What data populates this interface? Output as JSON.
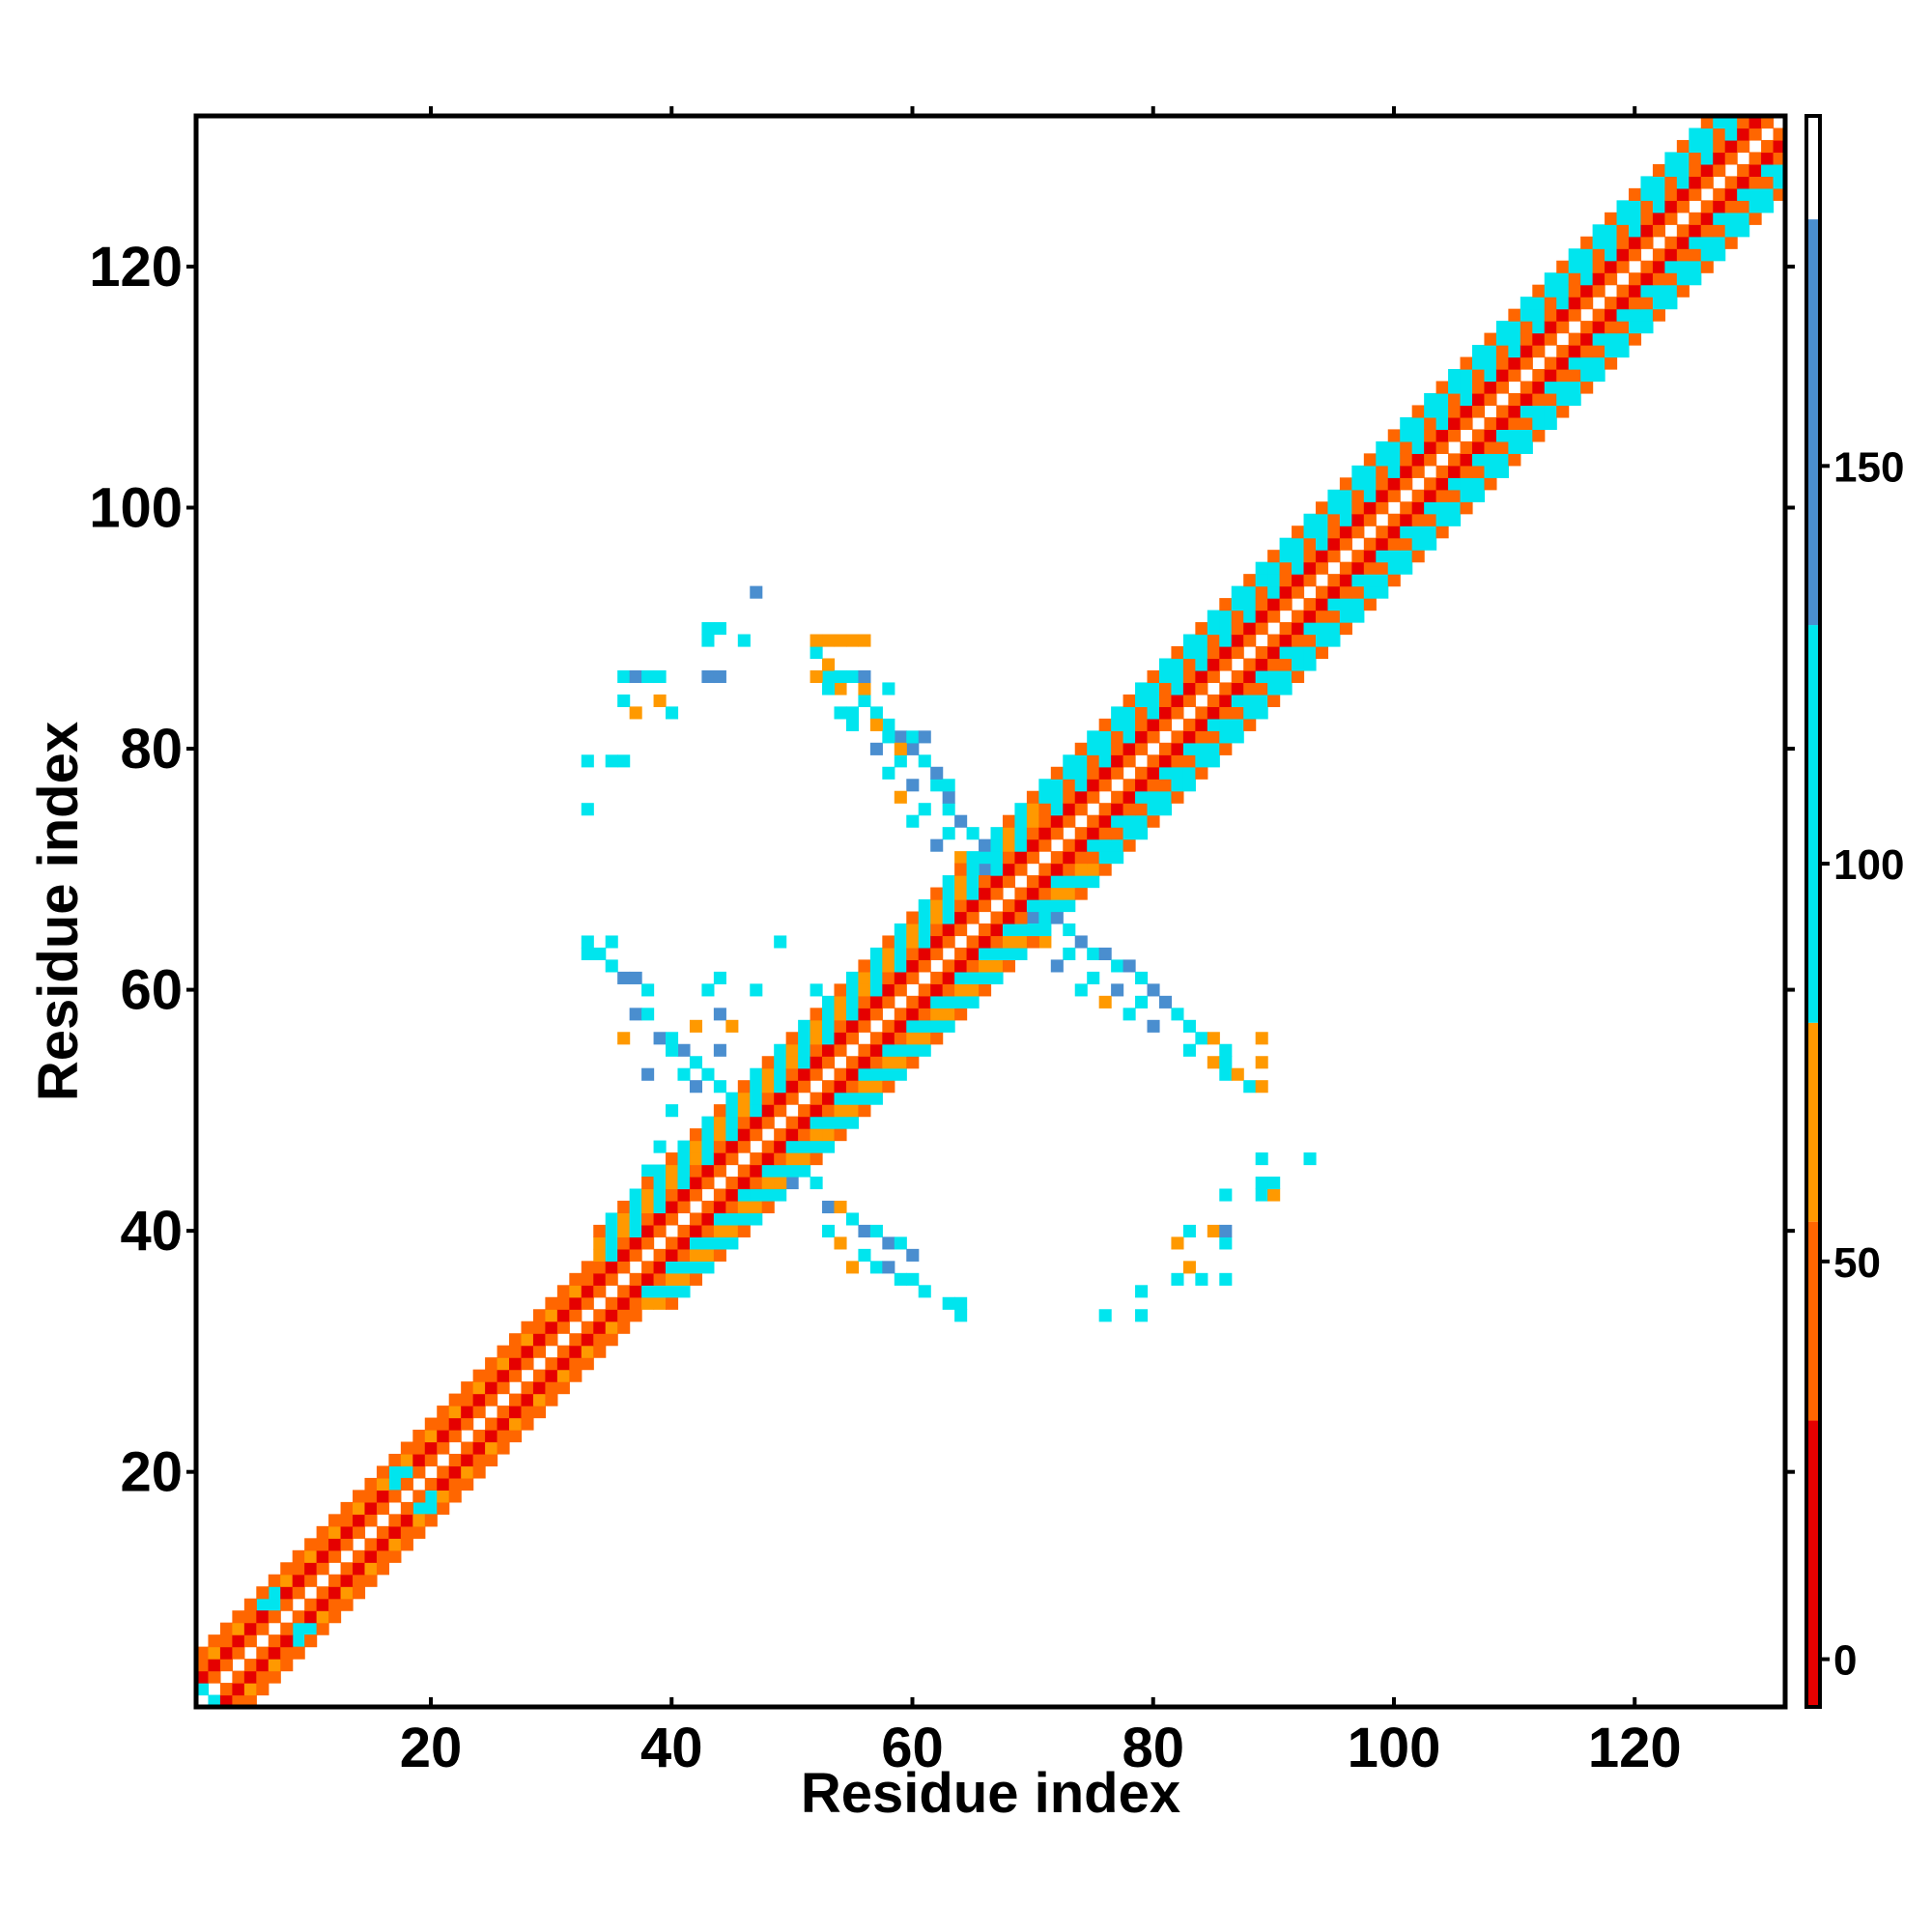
{
  "chart_data": {
    "type": "heatmap",
    "title": "",
    "xlabel": "Residue index",
    "ylabel": "Residue index",
    "xlim": [
      0.5,
      132.5
    ],
    "ylim": [
      0.5,
      132.5
    ],
    "xticks": [
      20,
      40,
      60,
      80,
      100,
      120
    ],
    "yticks": [
      20,
      40,
      60,
      80,
      100,
      120
    ],
    "grid": false,
    "colorbar": {
      "range": [
        -6,
        194
      ],
      "ticks": [
        0,
        50,
        100,
        150
      ],
      "segments": [
        {
          "from": -6,
          "to": 30,
          "color": "#e50000"
        },
        {
          "from": 30,
          "to": 55,
          "color": "#ff6600"
        },
        {
          "from": 55,
          "to": 80,
          "color": "#ff9900"
        },
        {
          "from": 80,
          "to": 130,
          "color": "#00e5ee"
        },
        {
          "from": 130,
          "to": 181,
          "color": "#4a8ecf"
        },
        {
          "from": 181,
          "to": 194,
          "color": "#ffffff"
        }
      ]
    },
    "palette": {
      "r": "#e50000",
      "o": "#ff6600",
      "y": "#ff9900",
      "c": "#00e5ee",
      "b": "#4a8ecf"
    },
    "diagonal_band": {
      "description_levels": "distance from diagonal mapped to class",
      "offsets": [
        {
          "min_res": 1,
          "max_res": 33,
          "pattern": [
            "o",
            "r",
            "y",
            "o"
          ]
        },
        {
          "min_res": 34,
          "max_res": 70,
          "pattern": [
            "o",
            "r",
            "o",
            "c",
            "y",
            "c"
          ]
        },
        {
          "min_res": 71,
          "max_res": 132,
          "pattern": [
            "o",
            "r",
            "c",
            "o",
            "c",
            "c"
          ]
        }
      ]
    },
    "cells": [
      [
        17,
        20,
        "c"
      ],
      [
        18,
        20,
        "c"
      ],
      [
        17,
        19,
        "c"
      ],
      [
        20,
        17,
        "c"
      ],
      [
        20,
        18,
        "c"
      ],
      [
        19,
        17,
        "c"
      ],
      [
        6,
        9,
        "c"
      ],
      [
        7,
        9,
        "c"
      ],
      [
        7,
        10,
        "c"
      ],
      [
        9,
        6,
        "c"
      ],
      [
        10,
        7,
        "c"
      ],
      [
        9,
        7,
        "c"
      ],
      [
        1,
        2,
        "c"
      ],
      [
        2,
        1,
        "c"
      ],
      [
        43,
        60,
        "c"
      ],
      [
        44,
        61,
        "c"
      ],
      [
        47,
        60,
        "c"
      ],
      [
        49,
        64,
        "c"
      ],
      [
        52,
        60,
        "c"
      ],
      [
        38,
        45,
        "c"
      ],
      [
        39,
        47,
        "c"
      ],
      [
        40,
        50,
        "c"
      ],
      [
        41,
        53,
        "c"
      ],
      [
        44,
        55,
        "b"
      ],
      [
        45,
        57,
        "y"
      ],
      [
        42,
        52,
        "b"
      ],
      [
        43,
        53,
        "c"
      ],
      [
        37,
        58,
        "b"
      ],
      [
        38,
        58,
        "c"
      ],
      [
        36,
        61,
        "b"
      ],
      [
        35,
        62,
        "c"
      ],
      [
        34,
        63,
        "c"
      ],
      [
        35,
        64,
        "c"
      ],
      [
        33,
        64,
        "c"
      ],
      [
        33,
        63,
        "c"
      ],
      [
        37,
        61,
        "b"
      ],
      [
        38,
        60,
        "c"
      ],
      [
        39,
        56,
        "b"
      ],
      [
        40,
        56,
        "c"
      ],
      [
        41,
        55,
        "b"
      ],
      [
        42,
        54,
        "c"
      ],
      [
        43,
        53,
        "b"
      ],
      [
        44,
        52,
        "c"
      ],
      [
        45,
        51,
        "c"
      ],
      [
        36,
        56,
        "y"
      ],
      [
        38,
        53,
        "b"
      ],
      [
        40,
        55,
        "c"
      ],
      [
        42,
        57,
        "y"
      ],
      [
        44,
        58,
        "b"
      ],
      [
        50,
        44,
        "b"
      ],
      [
        52,
        44,
        "c"
      ],
      [
        53,
        42,
        "b"
      ],
      [
        54,
        42,
        "y"
      ],
      [
        55,
        41,
        "c"
      ],
      [
        56,
        40,
        "b"
      ],
      [
        57,
        40,
        "c"
      ],
      [
        58,
        39,
        "b"
      ],
      [
        59,
        39,
        "c"
      ],
      [
        60,
        38,
        "b"
      ],
      [
        55,
        37,
        "y"
      ],
      [
        57,
        37,
        "c"
      ],
      [
        59,
        36,
        "c"
      ],
      [
        61,
        35,
        "c"
      ],
      [
        63,
        34,
        "c"
      ],
      [
        64,
        33,
        "c"
      ],
      [
        64,
        34,
        "c"
      ],
      [
        53,
        40,
        "c"
      ],
      [
        54,
        39,
        "y"
      ],
      [
        56,
        38,
        "c"
      ],
      [
        58,
        37,
        "b"
      ],
      [
        60,
        36,
        "c"
      ],
      [
        76,
        33,
        "c"
      ],
      [
        79,
        33,
        "c"
      ],
      [
        79,
        35,
        "c"
      ],
      [
        82,
        36,
        "c"
      ],
      [
        83,
        37,
        "y"
      ],
      [
        84,
        36,
        "c"
      ],
      [
        86,
        36,
        "c"
      ],
      [
        82,
        39,
        "y"
      ],
      [
        83,
        40,
        "c"
      ],
      [
        85,
        40,
        "y"
      ],
      [
        86,
        39,
        "c"
      ],
      [
        86,
        40,
        "b"
      ],
      [
        86,
        43,
        "c"
      ],
      [
        89,
        43,
        "c"
      ],
      [
        90,
        43,
        "y"
      ],
      [
        89,
        44,
        "c"
      ],
      [
        90,
        44,
        "c"
      ],
      [
        89,
        46,
        "c"
      ],
      [
        93,
        46,
        "c"
      ],
      [
        70,
        66,
        "b"
      ],
      [
        71,
        66,
        "c"
      ],
      [
        72,
        66,
        "b"
      ],
      [
        73,
        65,
        "c"
      ],
      [
        74,
        64,
        "b"
      ],
      [
        75,
        63,
        "c"
      ],
      [
        76,
        63,
        "b"
      ],
      [
        77,
        62,
        "c"
      ],
      [
        78,
        62,
        "b"
      ],
      [
        79,
        61,
        "c"
      ],
      [
        80,
        60,
        "b"
      ],
      [
        71,
        64,
        "y"
      ],
      [
        73,
        63,
        "c"
      ],
      [
        75,
        61,
        "c"
      ],
      [
        77,
        60,
        "b"
      ],
      [
        79,
        59,
        "c"
      ],
      [
        81,
        59,
        "b"
      ],
      [
        82,
        58,
        "c"
      ],
      [
        83,
        57,
        "c"
      ],
      [
        84,
        56,
        "c"
      ],
      [
        85,
        56,
        "y"
      ],
      [
        86,
        55,
        "c"
      ],
      [
        72,
        62,
        "b"
      ],
      [
        74,
        60,
        "c"
      ],
      [
        76,
        59,
        "y"
      ],
      [
        78,
        58,
        "c"
      ],
      [
        80,
        57,
        "b"
      ],
      [
        83,
        55,
        "c"
      ],
      [
        85,
        54,
        "y"
      ],
      [
        86,
        53,
        "c"
      ],
      [
        87,
        53,
        "y"
      ],
      [
        86,
        54,
        "c"
      ],
      [
        88,
        52,
        "c"
      ],
      [
        89,
        52,
        "y"
      ],
      [
        89,
        54,
        "y"
      ],
      [
        89,
        56,
        "y"
      ],
      [
        66,
        70,
        "b"
      ],
      [
        66,
        71,
        "c"
      ],
      [
        66,
        72,
        "b"
      ],
      [
        65,
        73,
        "c"
      ],
      [
        64,
        74,
        "b"
      ],
      [
        63,
        75,
        "c"
      ],
      [
        63,
        76,
        "b"
      ],
      [
        62,
        77,
        "c"
      ],
      [
        62,
        78,
        "b"
      ],
      [
        61,
        79,
        "c"
      ],
      [
        60,
        80,
        "b"
      ],
      [
        64,
        71,
        "y"
      ],
      [
        63,
        73,
        "c"
      ],
      [
        61,
        75,
        "c"
      ],
      [
        60,
        77,
        "b"
      ],
      [
        59,
        79,
        "c"
      ],
      [
        59,
        81,
        "b"
      ],
      [
        58,
        82,
        "c"
      ],
      [
        57,
        83,
        "c"
      ],
      [
        56,
        84,
        "c"
      ],
      [
        56,
        85,
        "y"
      ],
      [
        55,
        86,
        "c"
      ],
      [
        62,
        72,
        "b"
      ],
      [
        60,
        74,
        "c"
      ],
      [
        59,
        76,
        "y"
      ],
      [
        58,
        78,
        "c"
      ],
      [
        57,
        80,
        "b"
      ],
      [
        55,
        83,
        "c"
      ],
      [
        54,
        85,
        "y"
      ],
      [
        53,
        86,
        "c"
      ],
      [
        53,
        87,
        "y"
      ],
      [
        54,
        86,
        "c"
      ],
      [
        52,
        88,
        "c"
      ],
      [
        52,
        89,
        "y"
      ],
      [
        54,
        89,
        "y"
      ],
      [
        56,
        89,
        "y"
      ],
      [
        36,
        86,
        "c"
      ],
      [
        37,
        86,
        "b"
      ],
      [
        38,
        86,
        "c"
      ],
      [
        39,
        86,
        "c"
      ],
      [
        36,
        84,
        "c"
      ],
      [
        37,
        83,
        "y"
      ],
      [
        39,
        84,
        "y"
      ],
      [
        40,
        83,
        "c"
      ],
      [
        33,
        79,
        "c"
      ],
      [
        35,
        79,
        "c"
      ],
      [
        36,
        79,
        "c"
      ],
      [
        33,
        75,
        "c"
      ],
      [
        43,
        86,
        "b"
      ],
      [
        44,
        86,
        "b"
      ],
      [
        43,
        89,
        "c"
      ],
      [
        44,
        90,
        "c"
      ],
      [
        43,
        90,
        "c"
      ],
      [
        46,
        89,
        "c"
      ],
      [
        47,
        93,
        "b"
      ],
      [
        52,
        89,
        "y"
      ],
      [
        53,
        89,
        "y"
      ],
      [
        54,
        89,
        "y"
      ],
      [
        55,
        89,
        "y"
      ],
      [
        52,
        86,
        "y"
      ],
      [
        53,
        85,
        "c"
      ],
      [
        55,
        86,
        "y"
      ],
      [
        56,
        86,
        "b"
      ],
      [
        56,
        85,
        "c"
      ],
      [
        58,
        85,
        "c"
      ],
      [
        54,
        83,
        "c"
      ],
      [
        55,
        82,
        "c"
      ],
      [
        57,
        82,
        "y"
      ],
      [
        58,
        81,
        "c"
      ],
      [
        59,
        80,
        "y"
      ],
      [
        60,
        81,
        "c"
      ],
      [
        61,
        81,
        "b"
      ],
      [
        59,
        79,
        "b"
      ],
      [
        61,
        79,
        "c"
      ],
      [
        62,
        78,
        "y"
      ],
      [
        63,
        77,
        "c"
      ]
    ]
  }
}
